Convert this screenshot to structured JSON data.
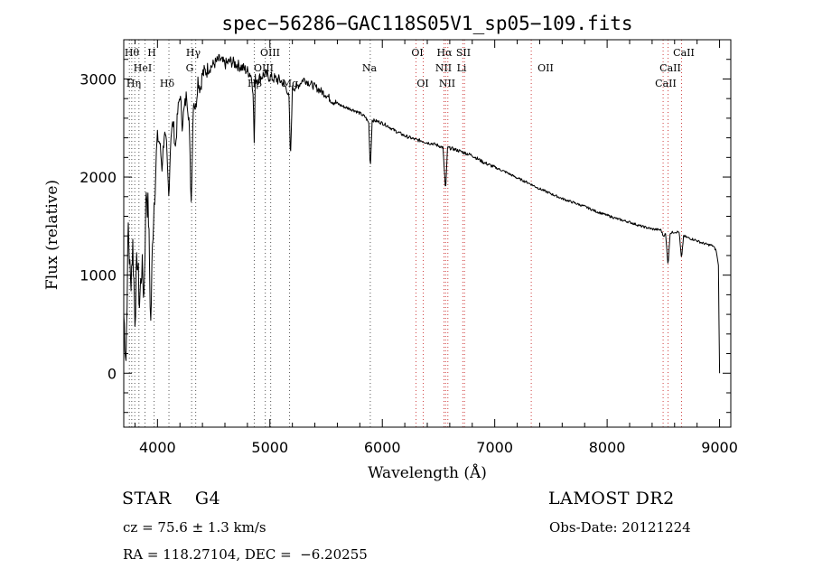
{
  "chart_data": {
    "type": "line",
    "title": "spec−56286−GAC118S05V1_sp05−109.fits",
    "xlabel": "Wavelength (Å)",
    "ylabel": "Flux (relative)",
    "xlim": [
      3700,
      9100
    ],
    "ylim": [
      -550,
      3400
    ],
    "xticks": [
      4000,
      5000,
      6000,
      7000,
      8000,
      9000
    ],
    "yticks": [
      0,
      1000,
      2000,
      3000
    ],
    "grid": false,
    "series": [
      {
        "x": [
          3700,
          3720,
          3740,
          3760,
          3780,
          3800,
          3820,
          3840,
          3860,
          3880,
          3900,
          3920,
          3940,
          3960,
          3980,
          4000,
          4020,
          4040,
          4060,
          4080,
          4100,
          4120,
          4140,
          4160,
          4180,
          4200,
          4220,
          4240,
          4260,
          4280,
          4300,
          4320,
          4340,
          4360,
          4380,
          4400,
          4450,
          4500,
          4550,
          4600,
          4650,
          4700,
          4750,
          4800,
          4830,
          4850,
          4861,
          4870,
          4900,
          4950,
          5000,
          5050,
          5100,
          5150,
          5170,
          5183,
          5200,
          5250,
          5300,
          5350,
          5400,
          5450,
          5500,
          5550,
          5600,
          5650,
          5700,
          5750,
          5800,
          5850,
          5880,
          5893,
          5910,
          5950,
          6000,
          6050,
          6100,
          6150,
          6200,
          6250,
          6300,
          6350,
          6400,
          6450,
          6500,
          6540,
          6563,
          6580,
          6620,
          6650,
          6700,
          6750,
          6800,
          6900,
          7000,
          7100,
          7200,
          7300,
          7400,
          7500,
          7600,
          7700,
          7800,
          7900,
          8000,
          8100,
          8200,
          8300,
          8400,
          8480,
          8498,
          8520,
          8542,
          8560,
          8600,
          8640,
          8662,
          8680,
          8720,
          8780,
          8840,
          8900,
          8940,
          8970,
          8990,
          9000
        ],
        "values": [
          600,
          150,
          1500,
          900,
          1300,
          600,
          1200,
          700,
          1100,
          800,
          1900,
          1600,
          500,
          1500,
          2000,
          2400,
          2350,
          2100,
          2450,
          2300,
          1800,
          2450,
          2550,
          2300,
          2650,
          2850,
          2550,
          2700,
          2850,
          2600,
          1750,
          2800,
          2700,
          3000,
          2900,
          3050,
          3100,
          3150,
          3200,
          3150,
          3180,
          3150,
          3120,
          3080,
          3050,
          2900,
          2300,
          3000,
          3000,
          3050,
          3020,
          3000,
          2980,
          2900,
          2800,
          2150,
          2900,
          2930,
          3000,
          2960,
          2920,
          2880,
          2840,
          2780,
          2750,
          2720,
          2700,
          2680,
          2650,
          2610,
          2550,
          2080,
          2580,
          2570,
          2550,
          2520,
          2480,
          2450,
          2420,
          2400,
          2380,
          2370,
          2350,
          2340,
          2320,
          2300,
          1850,
          2300,
          2290,
          2280,
          2260,
          2240,
          2220,
          2150,
          2100,
          2050,
          1990,
          1940,
          1880,
          1830,
          1780,
          1740,
          1700,
          1650,
          1610,
          1570,
          1540,
          1500,
          1470,
          1460,
          1400,
          1420,
          1100,
          1430,
          1440,
          1440,
          1160,
          1400,
          1380,
          1360,
          1330,
          1310,
          1300,
          1250,
          1100,
          0
        ]
      }
    ],
    "lines": {
      "absorption_label": [
        "Hθ",
        "H",
        "HeI",
        "Hη",
        "Hδ",
        "Hγ",
        "G",
        "Hβ",
        "OIII",
        "OIII",
        "Mg",
        "Na",
        "OI",
        "OI",
        "Hα",
        "NII",
        "NII",
        "SII",
        "Li",
        "OII",
        "CaII",
        "CaII",
        "CaII"
      ]
    }
  },
  "footer": {
    "star_type": "STAR    G4",
    "survey": "LAMOST DR2",
    "redshift": "cz = 75.6 ± 1.3 km/s",
    "obs_date": "Obs-Date: 20121224",
    "coords": "RA = 118.27104, DEC =  −6.20255"
  }
}
